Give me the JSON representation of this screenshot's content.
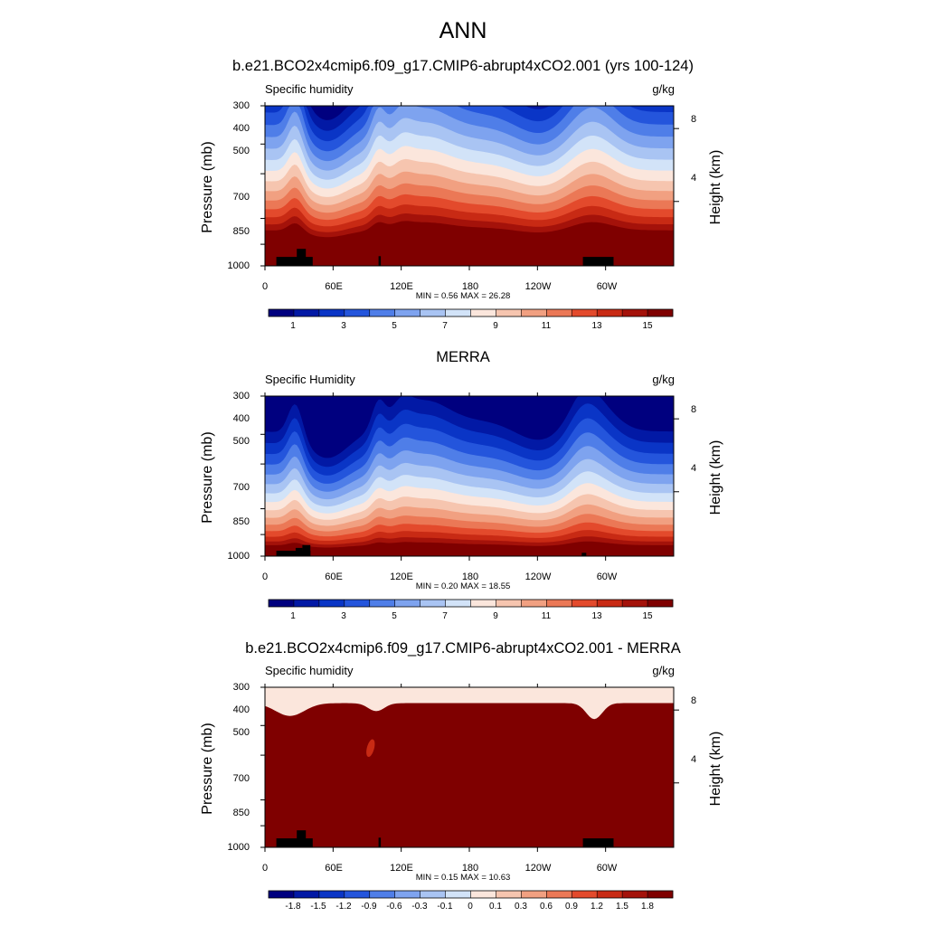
{
  "page": {
    "title": "ANN"
  },
  "chart_data": [
    {
      "type": "heatmap",
      "title": "b.e21.BCO2x4cmip6.f09_g17.CMIP6-abrupt4xCO2.001 (yrs 100-124)",
      "left_string": "Specific humidity",
      "right_string": "g/kg",
      "ylabel": "Pressure (mb)",
      "right_ylabel": "Height (km)",
      "xticks": [
        "0",
        "60E",
        "120E",
        "180",
        "120W",
        "60W"
      ],
      "xtick_lon": [
        0,
        60,
        120,
        180,
        240,
        300
      ],
      "xlim": [
        0,
        360
      ],
      "yticks": [
        "300",
        "400",
        "500",
        "700",
        "850",
        "1000"
      ],
      "ytick_p": [
        300,
        400,
        500,
        700,
        850,
        1000
      ],
      "ylim": [
        1000,
        300
      ],
      "height_ticks": [
        "8",
        "4"
      ],
      "height_p": [
        356,
        616
      ],
      "min": 0.56,
      "max": 26.28,
      "minmax_text": "MIN =   0.56  MAX =  26.28",
      "field": "model",
      "colorbar": {
        "labels": [
          "1",
          "3",
          "5",
          "7",
          "9",
          "11",
          "13",
          "15"
        ],
        "colors": [
          "#00007f",
          "#0219a5",
          "#0a35c6",
          "#2455dc",
          "#4f7ee8",
          "#7ea3ef",
          "#a9c4f3",
          "#d2e3f8",
          "#fbe6dc",
          "#f6c5af",
          "#f1a081",
          "#eb7856",
          "#e34a2c",
          "#c82a14",
          "#a4120a",
          "#7f0000"
        ]
      }
    },
    {
      "type": "heatmap",
      "title": "MERRA",
      "left_string": "Specific Humidity",
      "right_string": "g/kg",
      "ylabel": "Pressure (mb)",
      "right_ylabel": "Height (km)",
      "xticks": [
        "0",
        "60E",
        "120E",
        "180",
        "120W",
        "60W"
      ],
      "xtick_lon": [
        0,
        60,
        120,
        180,
        240,
        300
      ],
      "xlim": [
        0,
        360
      ],
      "yticks": [
        "300",
        "400",
        "500",
        "700",
        "850",
        "1000"
      ],
      "ytick_p": [
        300,
        400,
        500,
        700,
        850,
        1000
      ],
      "ylim": [
        1000,
        300
      ],
      "height_ticks": [
        "8",
        "4"
      ],
      "height_p": [
        356,
        616
      ],
      "min": 0.2,
      "max": 18.55,
      "minmax_text": "MIN =   0.20  MAX =  18.55",
      "field": "obs",
      "colorbar": {
        "labels": [
          "1",
          "3",
          "5",
          "7",
          "9",
          "11",
          "13",
          "15"
        ],
        "colors": [
          "#00007f",
          "#0219a5",
          "#0a35c6",
          "#2455dc",
          "#4f7ee8",
          "#7ea3ef",
          "#a9c4f3",
          "#d2e3f8",
          "#fbe6dc",
          "#f6c5af",
          "#f1a081",
          "#eb7856",
          "#e34a2c",
          "#c82a14",
          "#a4120a",
          "#7f0000"
        ]
      }
    },
    {
      "type": "heatmap",
      "title": "b.e21.BCO2x4cmip6.f09_g17.CMIP6-abrupt4xCO2.001 - MERRA",
      "left_string": "Specific humidity",
      "right_string": "g/kg",
      "ylabel": "Pressure (mb)",
      "right_ylabel": "Height (km)",
      "xticks": [
        "0",
        "60E",
        "120E",
        "180",
        "120W",
        "60W"
      ],
      "xtick_lon": [
        0,
        60,
        120,
        180,
        240,
        300
      ],
      "xlim": [
        0,
        360
      ],
      "yticks": [
        "300",
        "400",
        "500",
        "700",
        "850",
        "1000"
      ],
      "ytick_p": [
        300,
        400,
        500,
        700,
        850,
        1000
      ],
      "ylim": [
        1000,
        300
      ],
      "height_ticks": [
        "8",
        "4"
      ],
      "height_p": [
        356,
        616
      ],
      "min": 0.15,
      "max": 10.63,
      "minmax_text": "MIN =   0.15  MAX =  10.63",
      "field": "diff",
      "colorbar": {
        "labels": [
          "-1.8",
          "-1.5",
          "-1.2",
          "-0.9",
          "-0.6",
          "-0.3",
          "-0.1",
          "0",
          "0.1",
          "0.3",
          "0.6",
          "0.9",
          "1.2",
          "1.5",
          "1.8"
        ],
        "colors": [
          "#00007f",
          "#0219a5",
          "#0a35c6",
          "#2455dc",
          "#4f7ee8",
          "#7ea3ef",
          "#a9c4f3",
          "#d2e3f8",
          "#fbe6dc",
          "#f6c5af",
          "#f1a081",
          "#eb7856",
          "#e34a2c",
          "#c82a14",
          "#a4120a",
          "#7f0000"
        ]
      }
    }
  ]
}
